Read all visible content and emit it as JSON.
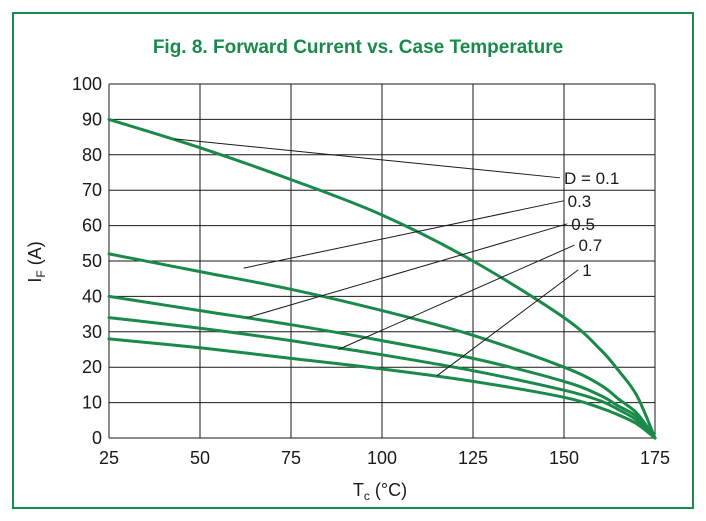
{
  "colors": {
    "accent": "#1a8a4a",
    "curve": "#1a8a4a",
    "grid": "#1a1a1a"
  },
  "chart_data": {
    "type": "line",
    "title": "Fig. 8. Forward Current vs. Case Temperature",
    "xlabel_main": "T",
    "xlabel_sub": "c",
    "xlabel_unit": " (°C)",
    "ylabel_main": "I",
    "ylabel_sub": "F",
    "ylabel_unit": " (A)",
    "xlim": [
      25,
      175
    ],
    "ylim": [
      0,
      100
    ],
    "x_ticks": [
      25,
      50,
      75,
      100,
      125,
      150,
      175
    ],
    "y_ticks": [
      0,
      10,
      20,
      30,
      40,
      50,
      60,
      70,
      80,
      90,
      100
    ],
    "grid": true,
    "series": [
      {
        "name": "D = 0.1",
        "x": [
          25,
          50,
          75,
          100,
          125,
          150,
          160,
          165,
          170,
          175
        ],
        "y": [
          90,
          82,
          73,
          63,
          50,
          34,
          25,
          19,
          12,
          0
        ]
      },
      {
        "name": "0.3",
        "x": [
          25,
          50,
          75,
          100,
          125,
          150,
          160,
          165,
          170,
          175
        ],
        "y": [
          52,
          47,
          42,
          36,
          29,
          20,
          15,
          11,
          7,
          0
        ]
      },
      {
        "name": "0.5",
        "x": [
          25,
          50,
          75,
          100,
          125,
          150,
          160,
          165,
          170,
          175
        ],
        "y": [
          40,
          36,
          32,
          27.5,
          22.5,
          16,
          12,
          9,
          6,
          0
        ]
      },
      {
        "name": "0.7",
        "x": [
          25,
          50,
          75,
          100,
          125,
          150,
          160,
          165,
          170,
          175
        ],
        "y": [
          34,
          31,
          27.5,
          23.5,
          19,
          13.5,
          10.5,
          8,
          5,
          0
        ]
      },
      {
        "name": "1",
        "x": [
          25,
          50,
          75,
          100,
          125,
          150,
          160,
          165,
          170,
          175
        ],
        "y": [
          28,
          25.5,
          22.5,
          19.5,
          16,
          11.5,
          8.5,
          6.5,
          4,
          0
        ]
      }
    ],
    "annotations": [
      {
        "label": "D = 0.1",
        "point": [
          43,
          84.5
        ],
        "text_anchor": [
          150,
          73.5
        ]
      },
      {
        "label": "0.3",
        "point": [
          62,
          48
        ],
        "text_anchor": [
          151,
          67
        ]
      },
      {
        "label": "0.5",
        "point": [
          63,
          34
        ],
        "text_anchor": [
          152,
          60.5
        ]
      },
      {
        "label": "0.7",
        "point": [
          88,
          25
        ],
        "text_anchor": [
          154,
          54.5
        ]
      },
      {
        "label": "1",
        "point": [
          115,
          17.5
        ],
        "text_anchor": [
          155,
          47.5
        ]
      }
    ]
  }
}
